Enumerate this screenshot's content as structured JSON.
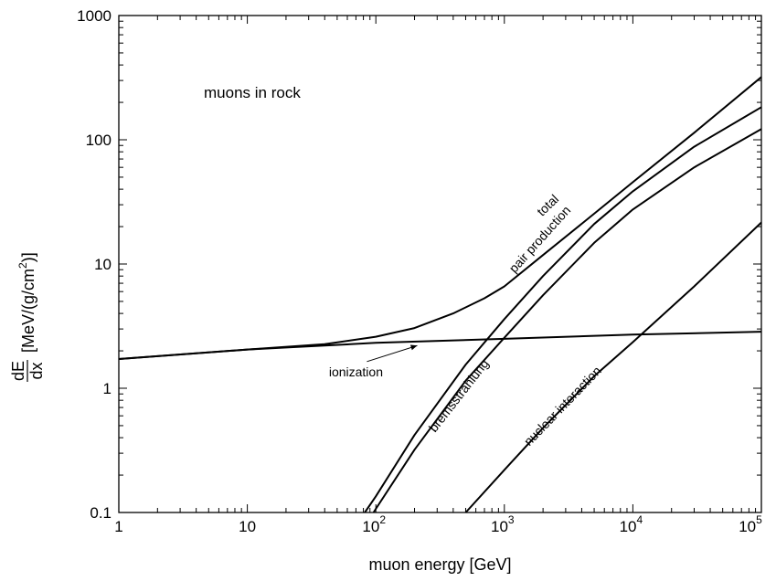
{
  "chart_data": {
    "type": "line",
    "title": "",
    "inset_label": "muons in rock",
    "xlabel": "muon energy [GeV]",
    "ylabel_fraction_numerator": "dE",
    "ylabel_fraction_denominator": "dx",
    "ylabel_units_prefix": "[MeV/(g/cm",
    "ylabel_units_exponent": "2",
    "ylabel_units_suffix": ")]",
    "x_scale": "log",
    "y_scale": "log",
    "xlim": [
      1,
      100000
    ],
    "ylim": [
      0.1,
      1000
    ],
    "grid": false,
    "legend": "none",
    "x_ticks": [
      {
        "value": 1,
        "label": "1"
      },
      {
        "value": 10,
        "label": "10"
      },
      {
        "value": 100,
        "base": "10",
        "exp": "2"
      },
      {
        "value": 1000,
        "base": "10",
        "exp": "3"
      },
      {
        "value": 10000,
        "base": "10",
        "exp": "4"
      },
      {
        "value": 100000,
        "base": "10",
        "exp": "5"
      }
    ],
    "y_ticks": [
      {
        "value": 0.1,
        "label": "0.1"
      },
      {
        "value": 1,
        "label": "1"
      },
      {
        "value": 10,
        "label": "10"
      },
      {
        "value": 100,
        "label": "100"
      },
      {
        "value": 1000,
        "label": "1000"
      }
    ],
    "series": [
      {
        "name": "total",
        "x": [
          1,
          10,
          40,
          100,
          200,
          400,
          700,
          1000,
          2000,
          5000,
          10000,
          30000,
          100000
        ],
        "y": [
          1.72,
          2.05,
          2.26,
          2.6,
          3.05,
          4.0,
          5.3,
          6.6,
          11.8,
          25.4,
          45.6,
          114,
          320
        ]
      },
      {
        "name": "ionization",
        "x": [
          1,
          10,
          100,
          1000,
          10000,
          100000
        ],
        "y": [
          1.72,
          2.05,
          2.32,
          2.5,
          2.7,
          2.85
        ]
      },
      {
        "name": "pair production",
        "x": [
          82,
          100,
          200,
          500,
          1000,
          2000,
          5000,
          10000,
          30000,
          100000
        ],
        "y": [
          0.1,
          0.135,
          0.42,
          1.55,
          3.6,
          8.0,
          21.0,
          38.5,
          88,
          183
        ]
      },
      {
        "name": "bremsstrahlung",
        "x": [
          96,
          100,
          200,
          500,
          1000,
          2000,
          5000,
          10000,
          30000,
          100000
        ],
        "y": [
          0.1,
          0.107,
          0.32,
          1.15,
          2.55,
          5.6,
          14.8,
          27.5,
          60,
          122
        ]
      },
      {
        "name": "nuclear interaction",
        "x": [
          500,
          1000,
          2000,
          5000,
          10000,
          30000,
          100000
        ],
        "y": [
          0.1,
          0.22,
          0.48,
          1.25,
          2.35,
          6.6,
          21.6
        ]
      }
    ],
    "annotations": [
      {
        "text": "total",
        "x": 2300,
        "y": 28,
        "angle": -44
      },
      {
        "text": "pair production",
        "x": 2000,
        "y": 15,
        "angle": -48
      },
      {
        "text": "ionization",
        "x": 70,
        "y": 1.25,
        "angle": 0,
        "arrow_to": {
          "x": 210,
          "y": 2.32
        }
      },
      {
        "text": "bremsstrahlung",
        "x": 470,
        "y": 0.83,
        "angle": -52
      },
      {
        "text": "nuclear  interaction",
        "x": 3000,
        "y": 0.68,
        "angle": -46
      }
    ]
  }
}
